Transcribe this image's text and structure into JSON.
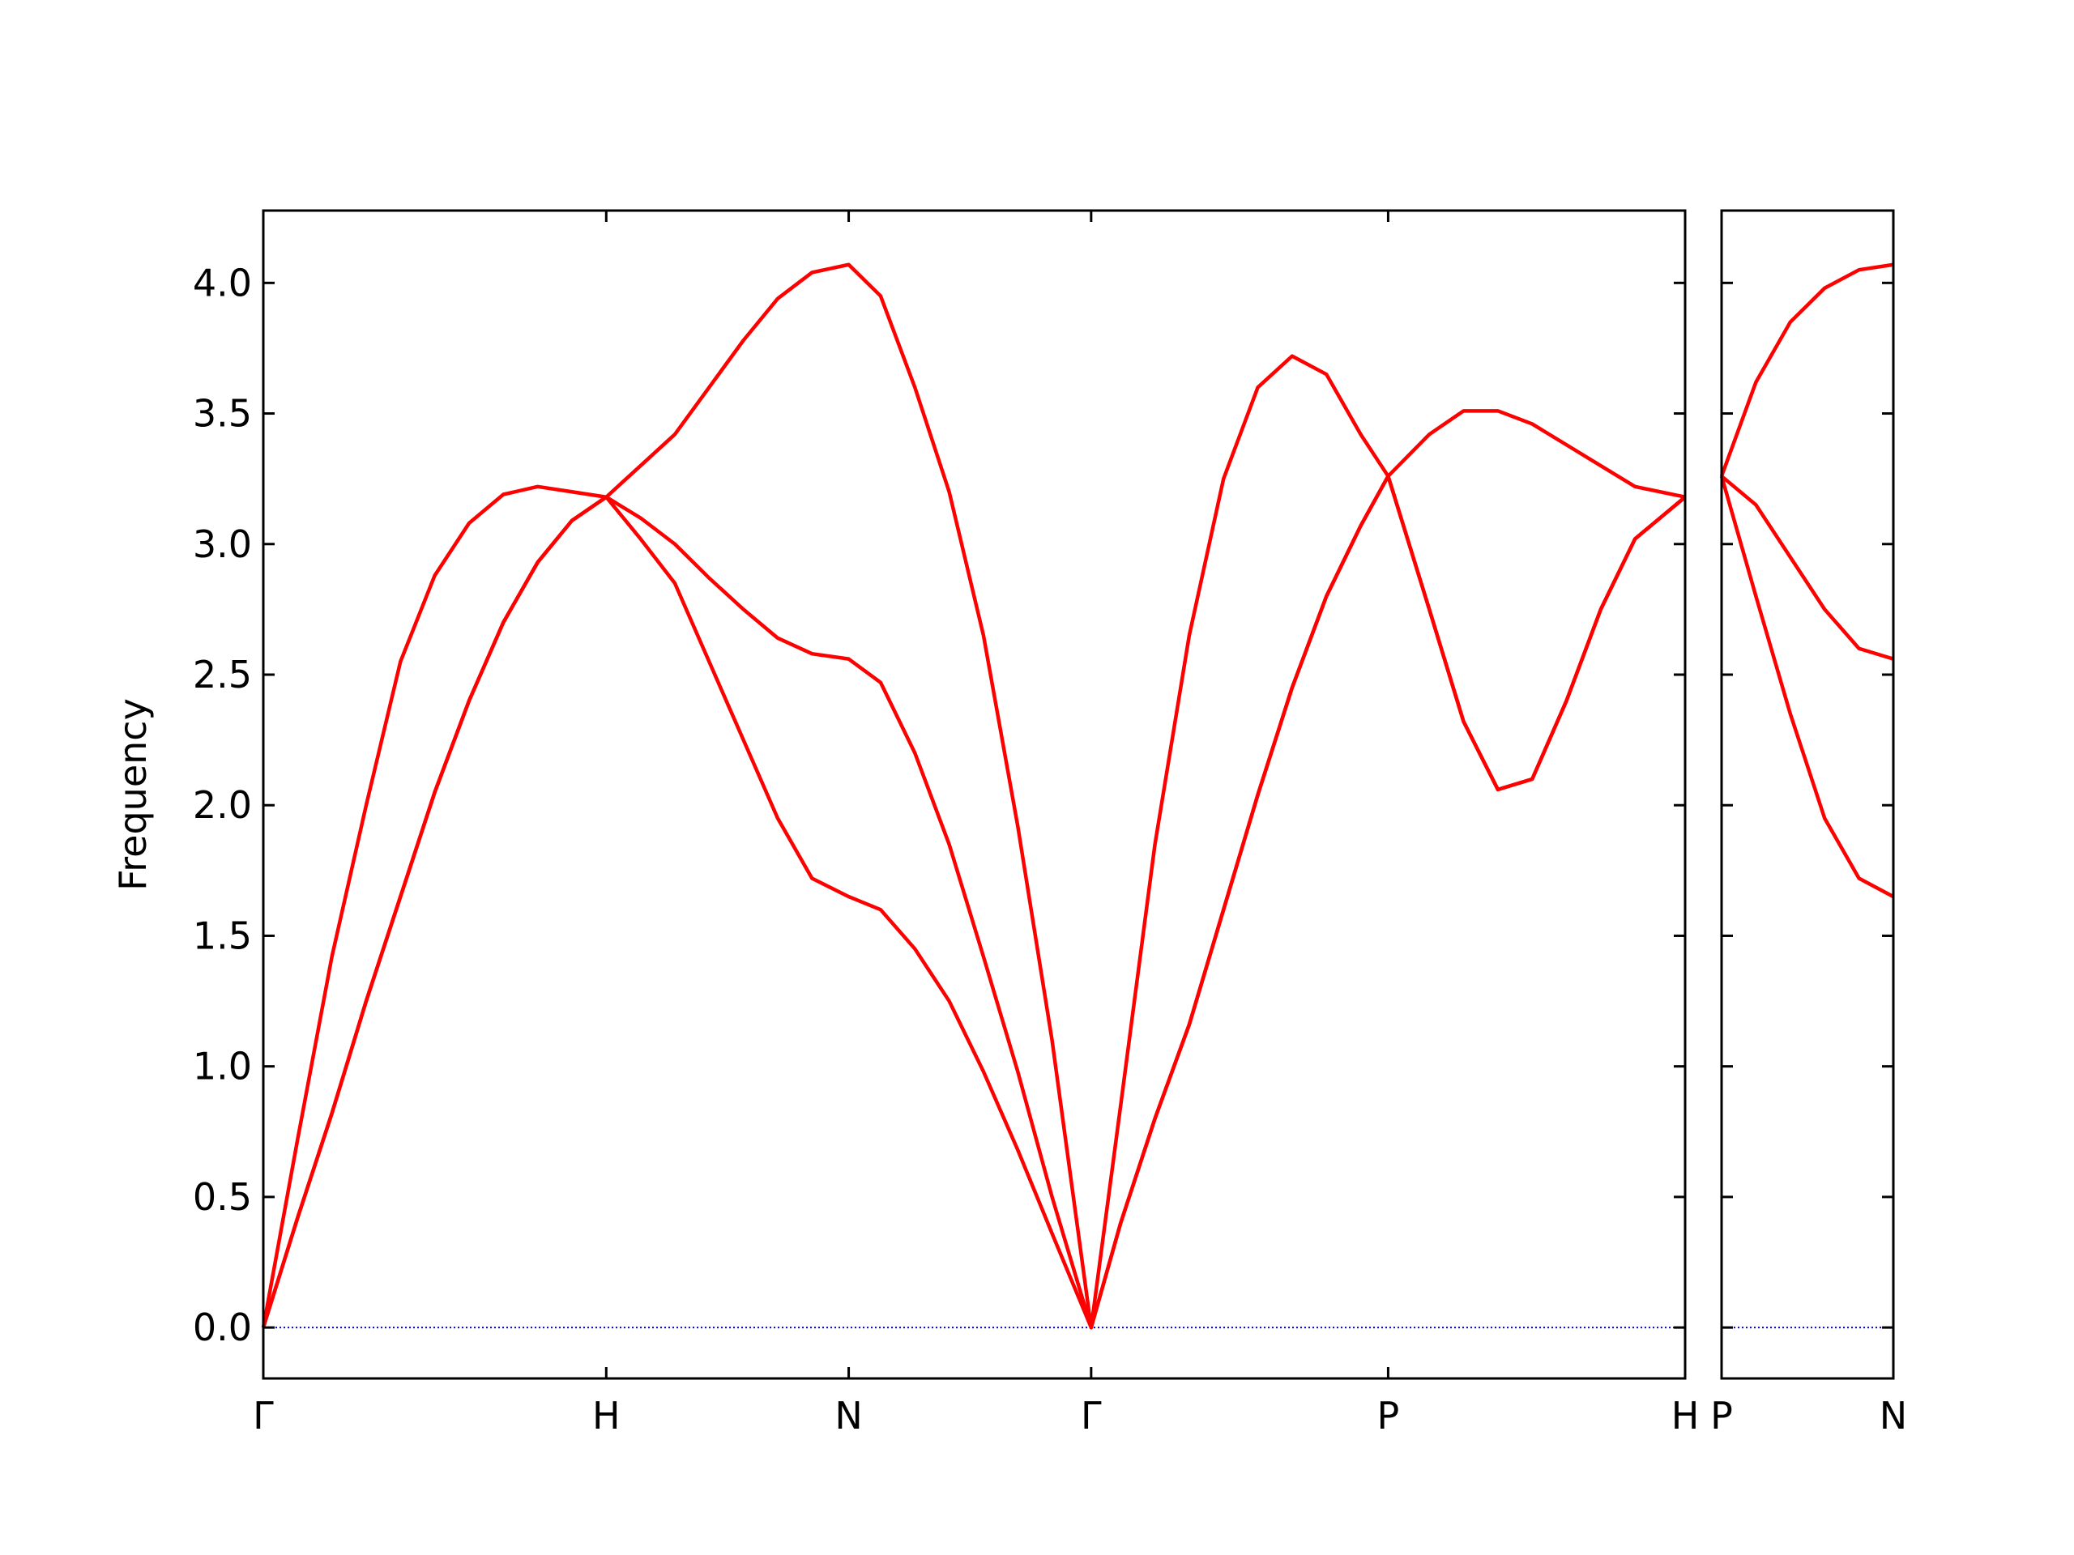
{
  "chart_data": [
    {
      "type": "line",
      "ylabel": "Frequency",
      "x": [
        0,
        0.1,
        0.2,
        0.3,
        0.4,
        0.5,
        0.6,
        0.7,
        0.8,
        0.9,
        1.0,
        1.1,
        1.2,
        1.3,
        1.4,
        1.5,
        1.6,
        1.707,
        1.8,
        1.9,
        2.0,
        2.1,
        2.2,
        2.3,
        2.414,
        2.5,
        2.6,
        2.7,
        2.8,
        2.9,
        3.0,
        3.1,
        3.2,
        3.28,
        3.4,
        3.5,
        3.6,
        3.7,
        3.8,
        3.9,
        4.0,
        4.146
      ],
      "series": [
        {
          "color": "#ff0000",
          "values": [
            0,
            0.42,
            0.82,
            1.25,
            1.65,
            2.05,
            2.4,
            2.7,
            2.93,
            3.09,
            3.18,
            3.02,
            2.85,
            2.55,
            2.25,
            1.95,
            1.72,
            1.65,
            1.6,
            1.45,
            1.25,
            0.98,
            0.68,
            0.36,
            0,
            0.4,
            0.8,
            1.16,
            1.6,
            2.04,
            2.45,
            2.8,
            3.07,
            3.26,
            2.75,
            2.32,
            2.06,
            2.1,
            2.4,
            2.75,
            3.02,
            3.18
          ]
        },
        {
          "color": "#ff0000",
          "values": [
            0,
            0.42,
            0.82,
            1.25,
            1.65,
            2.05,
            2.4,
            2.7,
            2.93,
            3.09,
            3.18,
            3.1,
            3.0,
            2.87,
            2.75,
            2.64,
            2.58,
            2.56,
            2.47,
            2.2,
            1.85,
            1.42,
            0.98,
            0.5,
            0,
            0.4,
            0.8,
            1.16,
            1.6,
            2.04,
            2.45,
            2.8,
            3.07,
            3.26,
            3.42,
            3.51,
            3.51,
            3.46,
            3.38,
            3.3,
            3.22,
            3.18
          ]
        },
        {
          "color": "#ff0000",
          "values": [
            0,
            0.72,
            1.42,
            2.0,
            2.55,
            2.88,
            3.08,
            3.19,
            3.22,
            3.2,
            3.18,
            3.3,
            3.42,
            3.6,
            3.78,
            3.94,
            4.04,
            4.07,
            3.95,
            3.6,
            3.2,
            2.65,
            1.92,
            1.1,
            0,
            0.85,
            1.85,
            2.65,
            3.25,
            3.6,
            3.72,
            3.65,
            3.42,
            3.26,
            2.75,
            2.32,
            2.06,
            2.1,
            2.4,
            2.75,
            3.02,
            3.18
          ]
        }
      ],
      "xlim": [
        0,
        4.146
      ],
      "ylim": [
        -0.195,
        4.277
      ],
      "xticks": [
        {
          "value": 0,
          "label": "Γ"
        },
        {
          "value": 1.0,
          "label": "H"
        },
        {
          "value": 1.707,
          "label": "N"
        },
        {
          "value": 2.414,
          "label": "Γ"
        },
        {
          "value": 3.28,
          "label": "P"
        },
        {
          "value": 4.146,
          "label": "H"
        }
      ],
      "yticks": [
        {
          "value": 0,
          "label": "0.0"
        },
        0.5,
        {
          "value": 1,
          "label": "1.0"
        },
        1.5,
        {
          "value": 2,
          "label": "2.0"
        },
        2.5,
        {
          "value": 3,
          "label": "3.0"
        },
        3.5,
        {
          "value": 4,
          "label": "4.0"
        }
      ],
      "show_ytick_labels": true,
      "hlines": [
        0
      ],
      "hline_color": "#0000cc"
    },
    {
      "type": "line",
      "x": [
        0,
        0.1,
        0.2,
        0.3,
        0.4,
        0.5
      ],
      "series": [
        {
          "color": "#ff0000",
          "values": [
            3.26,
            2.8,
            2.35,
            1.95,
            1.72,
            1.65
          ]
        },
        {
          "color": "#ff0000",
          "values": [
            3.26,
            3.15,
            2.95,
            2.75,
            2.6,
            2.56
          ]
        },
        {
          "color": "#ff0000",
          "values": [
            3.26,
            3.62,
            3.85,
            3.98,
            4.05,
            4.07
          ]
        }
      ],
      "xlim": [
        0,
        0.5
      ],
      "ylim": [
        -0.195,
        4.277
      ],
      "xticks": [
        {
          "value": 0,
          "label": "P"
        },
        {
          "value": 0.5,
          "label": "N"
        }
      ],
      "yticks": [
        0,
        0.5,
        1,
        1.5,
        2,
        2.5,
        3,
        3.5,
        4
      ],
      "show_ytick_labels": false,
      "hlines": [
        0
      ],
      "hline_color": "#0000cc"
    }
  ]
}
